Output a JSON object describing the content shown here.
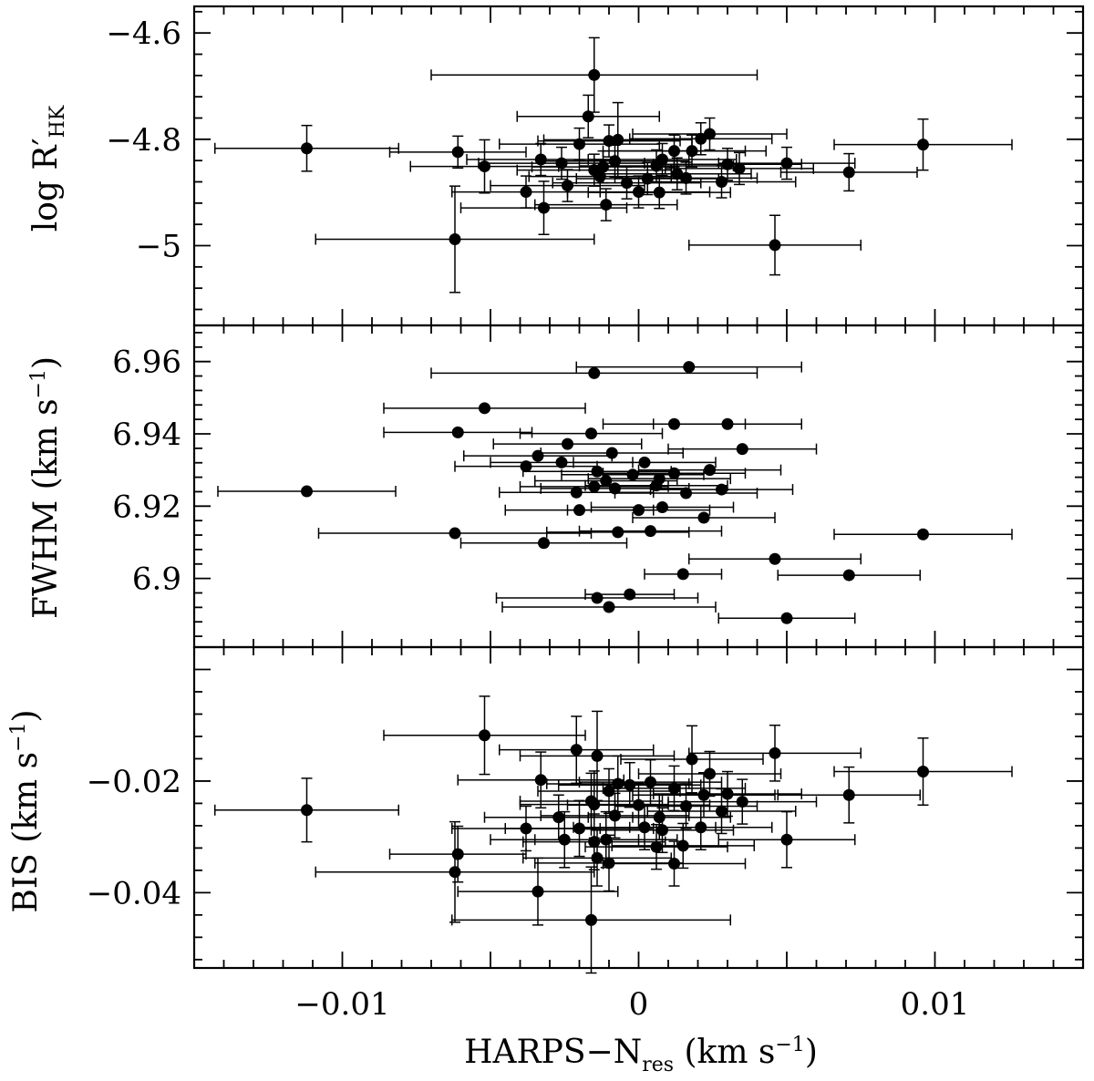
{
  "chart_data": [
    {
      "type": "scatter",
      "ylabel": "log R′HK",
      "ylabel_main": "log R′",
      "ylabel_sub": "HK",
      "ylim": [
        -5.15,
        -4.55
      ],
      "xlim": [
        -0.015,
        0.015
      ],
      "yticks": [
        -4.6,
        -4.8,
        -5.0
      ],
      "ytick_labels": [
        "−4.6",
        "−4.8",
        "−5"
      ],
      "points": [
        {
          "x": -0.0112,
          "y": -4.817,
          "xerr": 0.0031,
          "yerr": 0.043
        },
        {
          "x": -0.0061,
          "y": -4.824,
          "xerr": 0.0023,
          "yerr": 0.03
        },
        {
          "x": -0.0062,
          "y": -4.988,
          "xerr": 0.0047,
          "yerr": 0.1
        },
        {
          "x": -0.0052,
          "y": -4.851,
          "xerr": 0.0025,
          "yerr": 0.05
        },
        {
          "x": -0.0038,
          "y": -4.899,
          "xerr": 0.0025,
          "yerr": 0.03
        },
        {
          "x": -0.0033,
          "y": -4.838,
          "xerr": 0.0025,
          "yerr": 0.03
        },
        {
          "x": -0.0032,
          "y": -4.929,
          "xerr": 0.0028,
          "yerr": 0.05
        },
        {
          "x": -0.0026,
          "y": -4.845,
          "xerr": 0.0028,
          "yerr": 0.03
        },
        {
          "x": -0.0024,
          "y": -4.887,
          "xerr": 0.0026,
          "yerr": 0.03
        },
        {
          "x": -0.002,
          "y": -4.809,
          "xerr": 0.0027,
          "yerr": 0.03
        },
        {
          "x": -0.0017,
          "y": -4.757,
          "xerr": 0.0024,
          "yerr": 0.04
        },
        {
          "x": -0.0015,
          "y": -4.679,
          "xerr": 0.0055,
          "yerr": 0.07
        },
        {
          "x": -0.0015,
          "y": -4.858,
          "xerr": 0.0026,
          "yerr": 0.03
        },
        {
          "x": -0.0013,
          "y": -4.87,
          "xerr": 0.0024,
          "yerr": 0.03
        },
        {
          "x": -0.0012,
          "y": -4.852,
          "xerr": 0.0024,
          "yerr": 0.03
        },
        {
          "x": -0.0011,
          "y": -4.923,
          "xerr": 0.0024,
          "yerr": 0.03
        },
        {
          "x": -0.001,
          "y": -4.803,
          "xerr": 0.0024,
          "yerr": 0.03
        },
        {
          "x": -0.0008,
          "y": -4.841,
          "xerr": 0.0025,
          "yerr": 0.03
        },
        {
          "x": -0.0007,
          "y": -4.801,
          "xerr": 0.0025,
          "yerr": 0.07
        },
        {
          "x": -0.0004,
          "y": -4.882,
          "xerr": 0.0025,
          "yerr": 0.03
        },
        {
          "x": 0.0,
          "y": -4.899,
          "xerr": 0.0024,
          "yerr": 0.03
        },
        {
          "x": 0.0003,
          "y": -4.874,
          "xerr": 0.0024,
          "yerr": 0.03
        },
        {
          "x": 0.0006,
          "y": -4.85,
          "xerr": 0.0026,
          "yerr": 0.03
        },
        {
          "x": 0.0007,
          "y": -4.9,
          "xerr": 0.0024,
          "yerr": 0.03
        },
        {
          "x": 0.0008,
          "y": -4.838,
          "xerr": 0.0025,
          "yerr": 0.03
        },
        {
          "x": 0.0012,
          "y": -4.822,
          "xerr": 0.0024,
          "yerr": 0.03
        },
        {
          "x": 0.0013,
          "y": -4.865,
          "xerr": 0.0025,
          "yerr": 0.03
        },
        {
          "x": 0.0016,
          "y": -4.873,
          "xerr": 0.0024,
          "yerr": 0.03
        },
        {
          "x": 0.0018,
          "y": -4.822,
          "xerr": 0.0025,
          "yerr": 0.03
        },
        {
          "x": 0.0021,
          "y": -4.799,
          "xerr": 0.0024,
          "yerr": 0.03
        },
        {
          "x": 0.0024,
          "y": -4.79,
          "xerr": 0.0026,
          "yerr": 0.03
        },
        {
          "x": 0.0028,
          "y": -4.88,
          "xerr": 0.0025,
          "yerr": 0.03
        },
        {
          "x": 0.003,
          "y": -4.847,
          "xerr": 0.0025,
          "yerr": 0.03
        },
        {
          "x": 0.0034,
          "y": -4.855,
          "xerr": 0.0025,
          "yerr": 0.03
        },
        {
          "x": 0.0046,
          "y": -4.999,
          "xerr": 0.0029,
          "yerr": 0.056
        },
        {
          "x": 0.005,
          "y": -4.845,
          "xerr": 0.0023,
          "yerr": 0.03
        },
        {
          "x": 0.0071,
          "y": -4.862,
          "xerr": 0.0023,
          "yerr": 0.035
        },
        {
          "x": 0.0096,
          "y": -4.81,
          "xerr": 0.003,
          "yerr": 0.048
        }
      ]
    },
    {
      "type": "scatter",
      "ylabel": "FWHM (km s⁻¹)",
      "ylabel_main": "FWHM (km s",
      "ylabel_sup": "−1",
      "ylabel_end": ")",
      "ylim": [
        6.881,
        6.97
      ],
      "xlim": [
        -0.015,
        0.015
      ],
      "yticks": [
        6.96,
        6.94,
        6.92,
        6.9
      ],
      "ytick_labels": [
        "6.96",
        "6.94",
        "6.92",
        "6.9"
      ],
      "points": [
        {
          "x": -0.0112,
          "y": 6.9241,
          "xerr": 0.003
        },
        {
          "x": -0.0062,
          "y": 6.9125,
          "xerr": 0.0046
        },
        {
          "x": -0.0061,
          "y": 6.9404,
          "xerr": 0.0025
        },
        {
          "x": -0.0052,
          "y": 6.9471,
          "xerr": 0.0034
        },
        {
          "x": -0.0038,
          "y": 6.931,
          "xerr": 0.0024
        },
        {
          "x": -0.0034,
          "y": 6.9339,
          "xerr": 0.0025
        },
        {
          "x": -0.0032,
          "y": 6.9098,
          "xerr": 0.0028
        },
        {
          "x": -0.0026,
          "y": 6.9321,
          "xerr": 0.0024
        },
        {
          "x": -0.0024,
          "y": 6.9372,
          "xerr": 0.0025
        },
        {
          "x": -0.0021,
          "y": 6.9238,
          "xerr": 0.0026
        },
        {
          "x": -0.002,
          "y": 6.9189,
          "xerr": 0.0025
        },
        {
          "x": -0.0016,
          "y": 6.9401,
          "xerr": 0.0024
        },
        {
          "x": -0.0015,
          "y": 6.9254,
          "xerr": 0.0025
        },
        {
          "x": -0.0015,
          "y": 6.9568,
          "xerr": 0.0055
        },
        {
          "x": -0.0014,
          "y": 6.9296,
          "xerr": 0.0025
        },
        {
          "x": -0.0014,
          "y": 6.8946,
          "xerr": 0.0034
        },
        {
          "x": -0.0011,
          "y": 6.927,
          "xerr": 0.0024
        },
        {
          "x": -0.001,
          "y": 6.8921,
          "xerr": 0.0036
        },
        {
          "x": -0.0009,
          "y": 6.9347,
          "xerr": 0.0024
        },
        {
          "x": -0.0008,
          "y": 6.9249,
          "xerr": 0.0025
        },
        {
          "x": -0.0007,
          "y": 6.9128,
          "xerr": 0.0024
        },
        {
          "x": -0.0003,
          "y": 6.8956,
          "xerr": 0.0015
        },
        {
          "x": -0.0002,
          "y": 6.9287,
          "xerr": 0.0024
        },
        {
          "x": 0.0,
          "y": 6.9189,
          "xerr": 0.0024
        },
        {
          "x": 0.0002,
          "y": 6.9321,
          "xerr": 0.0024
        },
        {
          "x": 0.0004,
          "y": 6.9131,
          "xerr": 0.0024
        },
        {
          "x": 0.0006,
          "y": 6.9257,
          "xerr": 0.0024
        },
        {
          "x": 0.0007,
          "y": 6.9276,
          "xerr": 0.0024
        },
        {
          "x": 0.0008,
          "y": 6.9197,
          "xerr": 0.0024
        },
        {
          "x": 0.0012,
          "y": 6.9291,
          "xerr": 0.0024
        },
        {
          "x": 0.0012,
          "y": 6.9427,
          "xerr": 0.0024
        },
        {
          "x": 0.0015,
          "y": 6.9012,
          "xerr": 0.0013
        },
        {
          "x": 0.0016,
          "y": 6.9236,
          "xerr": 0.0024
        },
        {
          "x": 0.0017,
          "y": 6.9585,
          "xerr": 0.0038
        },
        {
          "x": 0.0022,
          "y": 6.9168,
          "xerr": 0.0024
        },
        {
          "x": 0.0024,
          "y": 6.93,
          "xerr": 0.0024
        },
        {
          "x": 0.0028,
          "y": 6.9246,
          "xerr": 0.0024
        },
        {
          "x": 0.003,
          "y": 6.9427,
          "xerr": 0.0025
        },
        {
          "x": 0.0035,
          "y": 6.9358,
          "xerr": 0.0025
        },
        {
          "x": 0.0046,
          "y": 6.9054,
          "xerr": 0.0029
        },
        {
          "x": 0.005,
          "y": 6.889,
          "xerr": 0.0023
        },
        {
          "x": 0.0071,
          "y": 6.9009,
          "xerr": 0.0024
        },
        {
          "x": 0.0096,
          "y": 6.9122,
          "xerr": 0.003
        }
      ]
    },
    {
      "type": "scatter",
      "xlabel": "HARPS−Nres (km s⁻¹)",
      "xlabel_main": "HARPS−N",
      "xlabel_sub": "res",
      "xlabel_mid": " (km s",
      "xlabel_sup": "−1",
      "xlabel_end": ")",
      "ylabel": "BIS (km s⁻¹)",
      "ylabel_main": "BIS (km s",
      "ylabel_sup": "−1",
      "ylabel_end": ")",
      "ylim": [
        -0.0535,
        0.004
      ],
      "xlim": [
        -0.015,
        0.015
      ],
      "yticks": [
        -0.02,
        -0.04
      ],
      "ytick_labels": [
        "−0.02",
        "−0.04"
      ],
      "xticks": [
        -0.01,
        0.0,
        0.01
      ],
      "xtick_labels": [
        "−0.01",
        "0",
        "0.01"
      ],
      "points": [
        {
          "x": -0.0112,
          "y": -0.0252,
          "xerr": 0.0031,
          "yerr": 0.0057
        },
        {
          "x": -0.0061,
          "y": -0.0331,
          "xerr": 0.0023,
          "yerr": 0.005
        },
        {
          "x": -0.0062,
          "y": -0.0363,
          "xerr": 0.0047,
          "yerr": 0.009
        },
        {
          "x": -0.0052,
          "y": -0.0118,
          "xerr": 0.0034,
          "yerr": 0.007
        },
        {
          "x": -0.0038,
          "y": -0.0285,
          "xerr": 0.0025,
          "yerr": 0.004
        },
        {
          "x": -0.0034,
          "y": -0.0398,
          "xerr": 0.0027,
          "yerr": 0.006
        },
        {
          "x": -0.0033,
          "y": -0.0198,
          "xerr": 0.0028,
          "yerr": 0.005
        },
        {
          "x": -0.0027,
          "y": -0.0265,
          "xerr": 0.0025,
          "yerr": 0.004
        },
        {
          "x": -0.0025,
          "y": -0.0305,
          "xerr": 0.0025,
          "yerr": 0.005
        },
        {
          "x": -0.0021,
          "y": -0.0144,
          "xerr": 0.0026,
          "yerr": 0.006
        },
        {
          "x": -0.002,
          "y": -0.0285,
          "xerr": 0.0025,
          "yerr": 0.005
        },
        {
          "x": -0.0016,
          "y": -0.0236,
          "xerr": 0.0024,
          "yerr": 0.005
        },
        {
          "x": -0.0016,
          "y": -0.0449,
          "xerr": 0.0047,
          "yerr": 0.0095
        },
        {
          "x": -0.0015,
          "y": -0.0242,
          "xerr": 0.0025,
          "yerr": 0.006
        },
        {
          "x": -0.0015,
          "y": -0.0309,
          "xerr": 0.0024,
          "yerr": 0.005
        },
        {
          "x": -0.0014,
          "y": -0.0338,
          "xerr": 0.0025,
          "yerr": 0.005
        },
        {
          "x": -0.0014,
          "y": -0.0155,
          "xerr": 0.0026,
          "yerr": 0.008
        },
        {
          "x": -0.0011,
          "y": -0.0305,
          "xerr": 0.0024,
          "yerr": 0.005
        },
        {
          "x": -0.001,
          "y": -0.0347,
          "xerr": 0.0025,
          "yerr": 0.005
        },
        {
          "x": -0.001,
          "y": -0.0218,
          "xerr": 0.0024,
          "yerr": 0.004
        },
        {
          "x": -0.0008,
          "y": -0.0262,
          "xerr": 0.0025,
          "yerr": 0.004
        },
        {
          "x": -0.0007,
          "y": -0.0205,
          "xerr": 0.0024,
          "yerr": 0.005
        },
        {
          "x": -0.0003,
          "y": -0.0207,
          "xerr": 0.0024,
          "yerr": 0.004
        },
        {
          "x": 0.0,
          "y": -0.0243,
          "xerr": 0.0024,
          "yerr": 0.004
        },
        {
          "x": 0.0002,
          "y": -0.0283,
          "xerr": 0.0024,
          "yerr": 0.004
        },
        {
          "x": 0.0004,
          "y": -0.0202,
          "xerr": 0.0024,
          "yerr": 0.004
        },
        {
          "x": 0.0006,
          "y": -0.0318,
          "xerr": 0.0024,
          "yerr": 0.004
        },
        {
          "x": 0.0007,
          "y": -0.0265,
          "xerr": 0.0024,
          "yerr": 0.004
        },
        {
          "x": 0.0008,
          "y": -0.0288,
          "xerr": 0.0024,
          "yerr": 0.004
        },
        {
          "x": 0.0012,
          "y": -0.0348,
          "xerr": 0.0024,
          "yerr": 0.004
        },
        {
          "x": 0.0012,
          "y": -0.0213,
          "xerr": 0.0024,
          "yerr": 0.004
        },
        {
          "x": 0.0015,
          "y": -0.0316,
          "xerr": 0.0024,
          "yerr": 0.004
        },
        {
          "x": 0.0016,
          "y": -0.0245,
          "xerr": 0.0024,
          "yerr": 0.004
        },
        {
          "x": 0.0018,
          "y": -0.0161,
          "xerr": 0.0024,
          "yerr": 0.006
        },
        {
          "x": 0.0021,
          "y": -0.0283,
          "xerr": 0.0024,
          "yerr": 0.004
        },
        {
          "x": 0.0022,
          "y": -0.0225,
          "xerr": 0.0024,
          "yerr": 0.004
        },
        {
          "x": 0.0024,
          "y": -0.0187,
          "xerr": 0.0024,
          "yerr": 0.004
        },
        {
          "x": 0.0028,
          "y": -0.0254,
          "xerr": 0.0025,
          "yerr": 0.004
        },
        {
          "x": 0.003,
          "y": -0.0223,
          "xerr": 0.0025,
          "yerr": 0.004
        },
        {
          "x": 0.0035,
          "y": -0.0237,
          "xerr": 0.0025,
          "yerr": 0.004
        },
        {
          "x": 0.0046,
          "y": -0.015,
          "xerr": 0.0029,
          "yerr": 0.005
        },
        {
          "x": 0.005,
          "y": -0.0305,
          "xerr": 0.0023,
          "yerr": 0.005
        },
        {
          "x": 0.0071,
          "y": -0.0225,
          "xerr": 0.0024,
          "yerr": 0.005
        },
        {
          "x": 0.0096,
          "y": -0.0183,
          "xerr": 0.003,
          "yerr": 0.006
        }
      ]
    }
  ]
}
